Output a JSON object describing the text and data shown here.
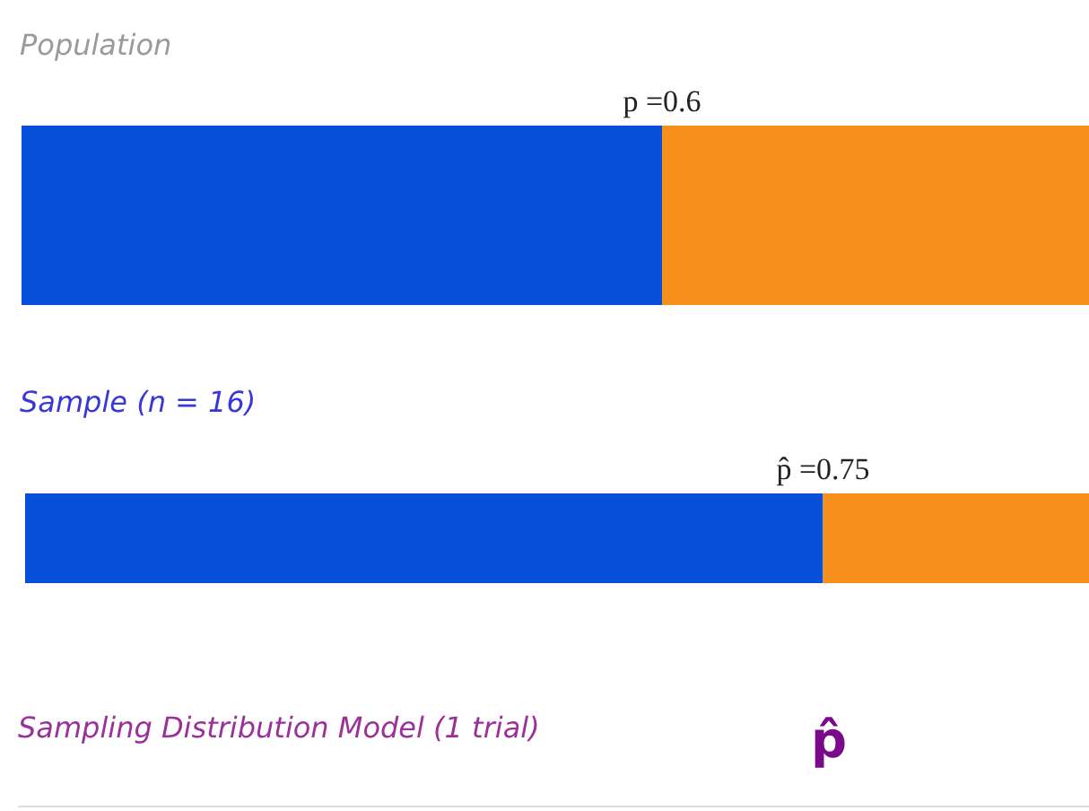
{
  "chart_data": [
    {
      "type": "bar",
      "orientation": "horizontal",
      "stacked": true,
      "xlim": [
        0,
        1
      ],
      "tick_labels": false,
      "title": "Population",
      "categories": [
        null
      ],
      "series": [
        {
          "color": "#0650d9",
          "values": [
            0.6
          ],
          "value_labels": [
            "p =0.6"
          ]
        },
        {
          "color": "#f7901a",
          "values": [
            0.4
          ]
        }
      ]
    },
    {
      "type": "bar",
      "orientation": "horizontal",
      "stacked": true,
      "xlim": [
        0,
        1
      ],
      "tick_labels": false,
      "title": "Sample (n = 16)",
      "categories": [
        null
      ],
      "series": [
        {
          "color": "#0650d9",
          "values": [
            0.75
          ],
          "value_labels": [
            "p̂ =0.75"
          ]
        },
        {
          "color": "#f7901a",
          "values": [
            0.25
          ]
        }
      ]
    },
    {
      "type": "other",
      "title": "Sampling Distribution Model (1 trial)",
      "annotations": [
        "p̂"
      ]
    }
  ]
}
